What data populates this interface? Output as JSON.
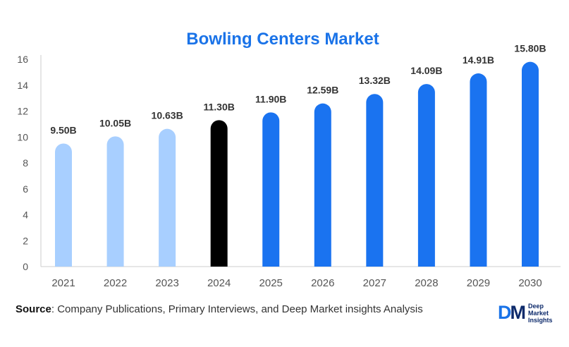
{
  "chart_data": {
    "type": "bar",
    "title": "Bowling Centers Market",
    "categories": [
      "2021",
      "2022",
      "2023",
      "2024",
      "2025",
      "2026",
      "2027",
      "2028",
      "2029",
      "2030"
    ],
    "values": [
      9.5,
      10.05,
      10.63,
      11.3,
      11.9,
      12.59,
      13.32,
      14.09,
      14.91,
      15.8
    ],
    "data_labels": [
      "9.50B",
      "10.05B",
      "10.63B",
      "11.30B",
      "11.90B",
      "12.59B",
      "13.32B",
      "14.09B",
      "14.91B",
      "15.80B"
    ],
    "yticks": [
      0,
      2,
      4,
      6,
      8,
      10,
      12,
      14,
      16
    ],
    "ylim": [
      0,
      16
    ],
    "xlabel": "",
    "ylabel": "",
    "grid": false,
    "legend": "none",
    "bar_colors": [
      "#a8cfff",
      "#a8cfff",
      "#a8cfff",
      "#000000",
      "#1a73f0",
      "#1a73f0",
      "#1a73f0",
      "#1a73f0",
      "#1a73f0",
      "#1a73f0"
    ],
    "title_color": "#1a73e8"
  },
  "source": {
    "label": "Source",
    "text": ": Company Publications, Primary Interviews, and Deep Market insights Analysis"
  },
  "logo": {
    "mark_d": "D",
    "mark_m": "M",
    "line1": "Deep",
    "line2": "Market",
    "line3": "Insights"
  }
}
